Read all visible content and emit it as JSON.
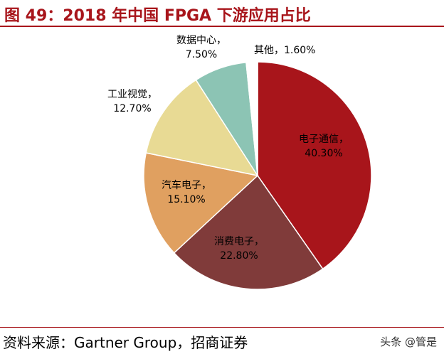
{
  "header": {
    "title": "图 49：2018 年中国 FPGA 下游应用占比"
  },
  "footer": {
    "source": "资料来源：Gartner Group，招商证券",
    "watermark": "头条 @管是"
  },
  "colors": {
    "accent": "#a8151b"
  },
  "chart_data": {
    "type": "pie",
    "title": "",
    "start_angle_deg": 0,
    "direction": "clockwise",
    "legend": "none",
    "slices": [
      {
        "label": "电子通信",
        "value": 40.3,
        "display": "40.30%",
        "color": "#a8151b"
      },
      {
        "label": "消费电子",
        "value": 22.8,
        "display": "22.80%",
        "color": "#803b3a"
      },
      {
        "label": "汽车电子",
        "value": 15.1,
        "display": "15.10%",
        "color": "#e0a060"
      },
      {
        "label": "工业视觉",
        "value": 12.7,
        "display": "12.70%",
        "color": "#e8da94"
      },
      {
        "label": "数据中心",
        "value": 7.5,
        "display": "7.50%",
        "color": "#8cc4b4"
      },
      {
        "label": "其他",
        "value": 1.6,
        "display": "1.60%",
        "color": "#ffffff"
      }
    ]
  }
}
